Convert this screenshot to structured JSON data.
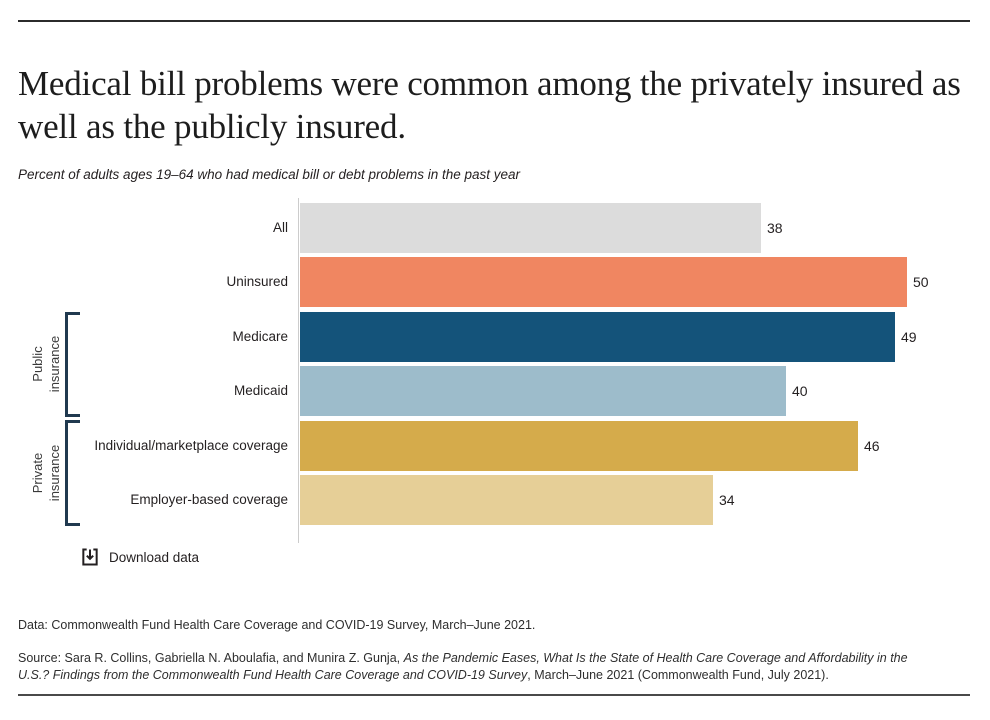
{
  "header": {
    "title": "Medical bill problems were common among the privately insured as well as the publicly insured.",
    "subtitle": "Percent of adults ages 19–64 who had medical bill or debt problems in the past year"
  },
  "chart_data": {
    "type": "bar",
    "orientation": "horizontal",
    "title": "Medical bill problems were common among the privately insured as well as the publicly insured.",
    "subtitle": "Percent of adults ages 19–64 who had medical bill or debt problems in the past year",
    "categories": [
      "All",
      "Uninsured",
      "Medicare",
      "Medicaid",
      "Individual/marketplace coverage",
      "Employer-based coverage"
    ],
    "values": [
      38,
      50,
      49,
      40,
      46,
      34
    ],
    "colors": [
      "#dcdcdc",
      "#f08661",
      "#14537a",
      "#9dbccb",
      "#d5ab4b",
      "#e6cf97"
    ],
    "xlim": [
      0,
      50
    ],
    "grid": false,
    "value_labels": true,
    "groups": [
      {
        "line1": "Public",
        "line2": "insurance",
        "covers": [
          "Medicare",
          "Medicaid"
        ]
      },
      {
        "line1": "Private",
        "line2": "insurance",
        "covers": [
          "Individual/marketplace coverage",
          "Employer-based coverage"
        ]
      }
    ]
  },
  "download": {
    "label": "Download data"
  },
  "footer": {
    "data_line": "Data: Commonwealth Fund Health Care Coverage and COVID-19 Survey, March–June 2021.",
    "source_prefix": "Source: Sara R. Collins, Gabriella N. Aboulafia, and Munira Z. Gunja, ",
    "source_italic": "As the Pandemic Eases, What Is the State of Health Care Coverage and Affordability in the U.S.? Findings from the Commonwealth Fund Health Care Coverage and COVID-19 Survey",
    "source_suffix": ", March–June 2021 (Commonwealth Fund, July 2021)."
  },
  "style": {
    "bracket_color": "#20394f",
    "axis_color": "#cccccc",
    "rule_color": "#2b2b2b"
  }
}
